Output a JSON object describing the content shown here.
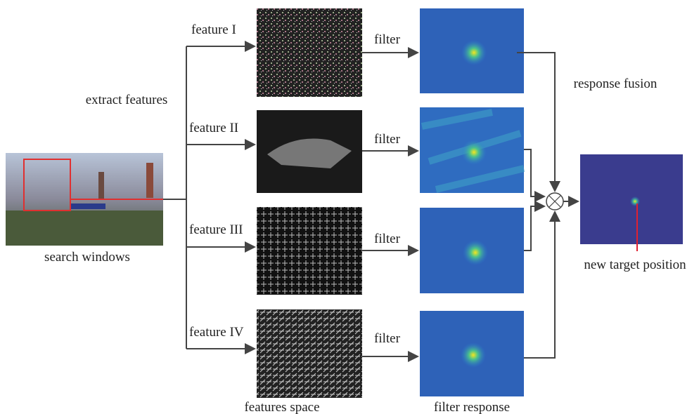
{
  "left": {
    "extract": "extract features",
    "search": "search windows"
  },
  "features": [
    {
      "label": "feature I",
      "filter": "filter"
    },
    {
      "label": "feature II",
      "filter": "filter"
    },
    {
      "label": "feature III",
      "filter": "filter"
    },
    {
      "label": "feature IV",
      "filter": "filter"
    }
  ],
  "captions": {
    "features_space": "features space",
    "filter_response": "filter response",
    "response_fusion": "response fusion",
    "new_target": "new target position"
  }
}
